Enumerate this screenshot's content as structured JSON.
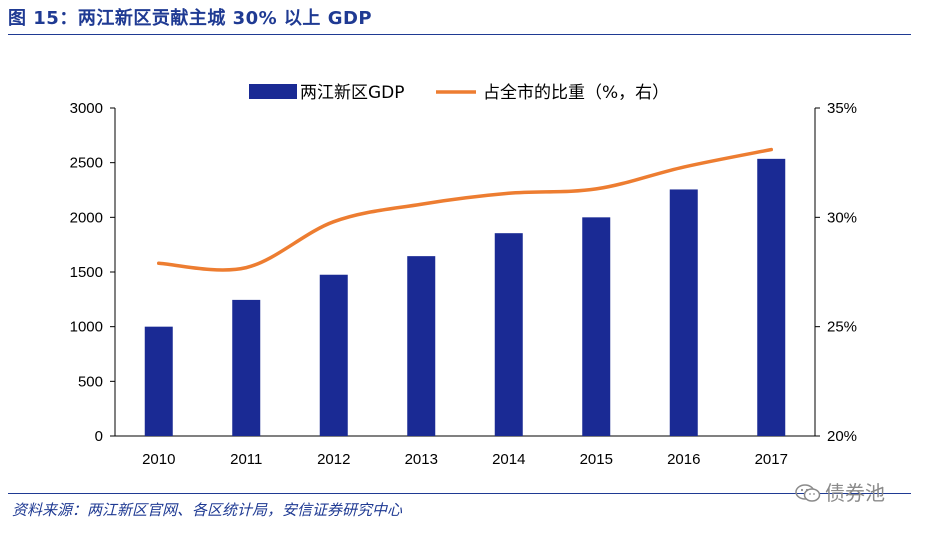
{
  "title": "图 15：两江新区贡献主城 30% 以上 GDP",
  "source": "资料来源：两江新区官网、各区统计局，安信证券研究中心",
  "watermark": "债券池",
  "colors": {
    "bar": "#1A2A94",
    "line": "#ED7D31",
    "title": "#1F3A93",
    "axis": "#000000"
  },
  "chart_data": {
    "type": "bar+line",
    "categories": [
      "2010",
      "2011",
      "2012",
      "2013",
      "2014",
      "2015",
      "2016",
      "2017"
    ],
    "series": [
      {
        "name": "两江新区GDP",
        "type": "bar",
        "axis": "left",
        "values": [
          1000,
          1245,
          1475,
          1645,
          1855,
          2000,
          2255,
          2535
        ]
      },
      {
        "name": "占全市的比重（%，右）",
        "type": "line",
        "axis": "right",
        "values": [
          27.9,
          27.7,
          29.8,
          30.6,
          31.1,
          31.3,
          32.3,
          33.1
        ]
      }
    ],
    "y_left": {
      "min": 0,
      "max": 3000,
      "ticks": [
        0,
        500,
        1000,
        1500,
        2000,
        2500,
        3000
      ]
    },
    "y_right": {
      "min": 20,
      "max": 35,
      "ticks": [
        "20%",
        "25%",
        "30%",
        "35%"
      ]
    },
    "legend_position": "top"
  }
}
